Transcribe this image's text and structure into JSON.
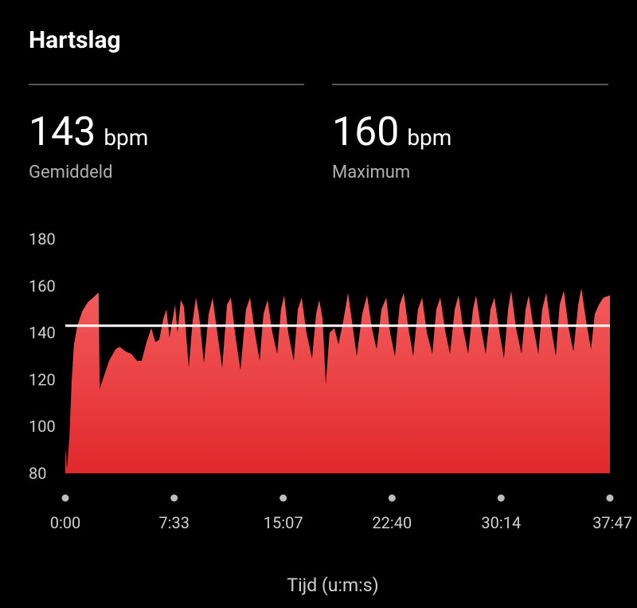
{
  "header": {
    "title": "Hartslag"
  },
  "stats": [
    {
      "value": 143,
      "unit": "bpm",
      "label": "Gemiddeld"
    },
    {
      "value": 160,
      "unit": "bpm",
      "label": "Maximum"
    }
  ],
  "chart_data": {
    "type": "area",
    "x_label": "Tijd (u:m:s)",
    "color_top": "#f45c5c",
    "color_bottom": "#e0282c",
    "reference_color": "#ffffff",
    "xlim": [
      0,
      2267
    ],
    "xticks": [
      {
        "value": 0,
        "label": "0:00"
      },
      {
        "value": 453,
        "label": "7:33"
      },
      {
        "value": 907,
        "label": "15:07"
      },
      {
        "value": 1360,
        "label": "22:40"
      },
      {
        "value": 1814,
        "label": "30:14"
      },
      {
        "value": 2267,
        "label": "37:47"
      }
    ],
    "ylim": [
      80,
      180
    ],
    "yticks": [
      80,
      100,
      120,
      140,
      160,
      180
    ],
    "x": [
      0,
      7,
      17,
      27,
      36,
      50,
      70,
      93,
      116,
      136,
      139,
      143,
      159,
      182,
      209,
      226,
      252,
      275,
      298,
      318,
      338,
      358,
      375,
      391,
      408,
      421,
      434,
      447,
      457,
      467,
      481,
      494,
      514,
      530,
      544,
      557,
      577,
      597,
      613,
      630,
      653,
      673,
      689,
      709,
      729,
      752,
      769,
      789,
      809,
      825,
      842,
      862,
      882,
      898,
      911,
      928,
      951,
      968,
      984,
      1004,
      1027,
      1044,
      1057,
      1071,
      1084,
      1100,
      1120,
      1137,
      1157,
      1177,
      1193,
      1213,
      1236,
      1256,
      1276,
      1296,
      1316,
      1336,
      1352,
      1372,
      1392,
      1409,
      1428,
      1448,
      1468,
      1485,
      1505,
      1528,
      1544,
      1561,
      1581,
      1601,
      1621,
      1637,
      1657,
      1677,
      1697,
      1710,
      1730,
      1750,
      1770,
      1786,
      1806,
      1826,
      1843,
      1856,
      1876,
      1899,
      1916,
      1929,
      1949,
      1969,
      1985,
      2002,
      2022,
      2042,
      2058,
      2075,
      2095,
      2115,
      2135,
      2148,
      2168,
      2188,
      2204,
      2221,
      2240,
      2267
    ],
    "values": [
      91,
      82,
      95,
      120,
      135,
      143,
      149,
      153,
      155,
      157,
      157,
      116,
      121,
      128,
      133,
      134,
      132,
      131,
      128,
      128,
      136,
      142,
      136,
      137,
      146,
      150,
      138,
      146,
      152,
      140,
      154,
      151,
      125,
      145,
      155,
      147,
      127,
      148,
      155,
      142,
      125,
      152,
      155,
      138,
      124,
      150,
      155,
      140,
      128,
      148,
      154,
      140,
      131,
      150,
      156,
      140,
      128,
      150,
      155,
      140,
      129,
      148,
      154,
      146,
      118,
      140,
      142,
      135,
      145,
      157,
      145,
      130,
      148,
      156,
      142,
      133,
      150,
      155,
      140,
      130,
      152,
      157,
      142,
      130,
      150,
      155,
      140,
      131,
      150,
      155,
      141,
      131,
      150,
      156,
      141,
      131,
      150,
      156,
      142,
      131,
      150,
      155,
      141,
      129,
      150,
      158,
      142,
      131,
      150,
      156,
      142,
      131,
      150,
      157,
      142,
      130,
      152,
      158,
      142,
      132,
      152,
      159,
      145,
      133,
      148,
      152,
      155,
      156
    ]
  }
}
